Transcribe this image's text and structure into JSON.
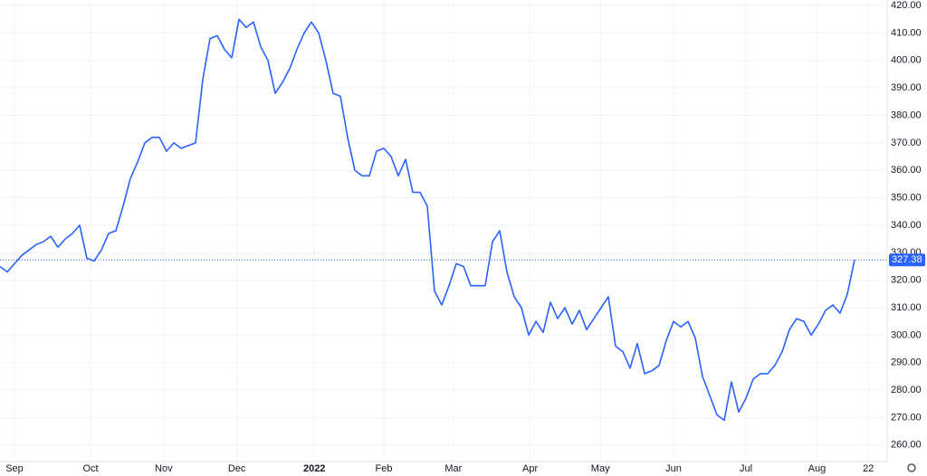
{
  "chart_data": {
    "type": "line",
    "series": [
      {
        "color": "#2962ff",
        "values": [
          325,
          323,
          326,
          329,
          331,
          333,
          334,
          336,
          332,
          335,
          337,
          340,
          328,
          327,
          331,
          337,
          338,
          347,
          357,
          363,
          370,
          372,
          372,
          367,
          370,
          368,
          369,
          370,
          393,
          408,
          409,
          404,
          401,
          415,
          412,
          414,
          405,
          400,
          388,
          392,
          397,
          404,
          410,
          414,
          410,
          400,
          388,
          387,
          372,
          360,
          358,
          358,
          367,
          368,
          365,
          358,
          364,
          352,
          352,
          347,
          316,
          311,
          318,
          326,
          325,
          318,
          318,
          318,
          334,
          338,
          323,
          314,
          310,
          300,
          305,
          301,
          312,
          306,
          310,
          304,
          309,
          302,
          306,
          310,
          314,
          296,
          294,
          288,
          297,
          286,
          287,
          289,
          298,
          305,
          303,
          305,
          299,
          285,
          278,
          271,
          269,
          283,
          272,
          277,
          284,
          286,
          286,
          289,
          294,
          302,
          306,
          305,
          300,
          304,
          309,
          311,
          308,
          315,
          327.38
        ]
      }
    ],
    "xlim": [
      0,
      122
    ],
    "xticks": [
      {
        "value": 2,
        "label": "Sep"
      },
      {
        "value": 12.5,
        "label": "Oct"
      },
      {
        "value": 22.6,
        "label": "Nov"
      },
      {
        "value": 32.7,
        "label": "Dec"
      },
      {
        "value": 43.4,
        "label": "2022"
      },
      {
        "value": 53,
        "label": "Feb"
      },
      {
        "value": 62.6,
        "label": "Mar"
      },
      {
        "value": 73.2,
        "label": "Apr"
      },
      {
        "value": 82.9,
        "label": "May"
      },
      {
        "value": 93,
        "label": "Jun"
      },
      {
        "value": 103,
        "label": "Jul"
      },
      {
        "value": 112.8,
        "label": "Aug"
      },
      {
        "value": 119.9,
        "label": "22"
      }
    ],
    "ylim": [
      254,
      422
    ],
    "yticks": [
      {
        "value": 260,
        "label": "260.00"
      },
      {
        "value": 270,
        "label": "270.00"
      },
      {
        "value": 280,
        "label": "280.00"
      },
      {
        "value": 290,
        "label": "290.00"
      },
      {
        "value": 300,
        "label": "300.00"
      },
      {
        "value": 310,
        "label": "310.00"
      },
      {
        "value": 320,
        "label": "320.00"
      },
      {
        "value": 330,
        "label": "330.00"
      },
      {
        "value": 340,
        "label": "340.00"
      },
      {
        "value": 350,
        "label": "350.00"
      },
      {
        "value": 360,
        "label": "360.00"
      },
      {
        "value": 370,
        "label": "370.00"
      },
      {
        "value": 380,
        "label": "380.00"
      },
      {
        "value": 390,
        "label": "390.00"
      },
      {
        "value": 400,
        "label": "400.00"
      },
      {
        "value": 410,
        "label": "410.00"
      },
      {
        "value": 420,
        "label": "420.00"
      }
    ],
    "grid": true
  }
}
